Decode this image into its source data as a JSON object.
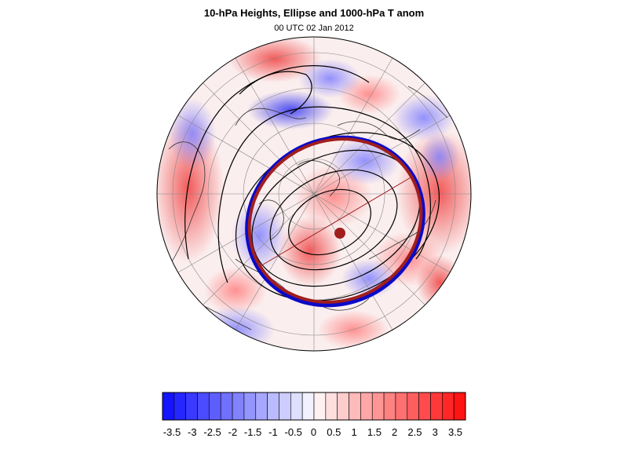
{
  "header": {
    "title": "10-hPa Heights, Ellipse and 1000-hPa T anom",
    "subtitle": "00 UTC 02 Jan 2012"
  },
  "colors": {
    "ellipse_observed": "#0a0ac8",
    "ellipse_fitted": "#a01e1e",
    "centroid": "#a01e1e",
    "contour": "#000000",
    "coastline": "#333333",
    "graticule": "#888888"
  },
  "legend": {
    "type": "colorbar",
    "labels": [
      "-3.5",
      "-3",
      "-2.5",
      "-2",
      "-1.5",
      "-1",
      "-0.5",
      "0",
      "0.5",
      "1",
      "1.5",
      "2",
      "2.5",
      "3",
      "3.5"
    ],
    "bins": 26,
    "min_color": "#1414ff",
    "max_color": "#ff1414"
  },
  "map": {
    "projection": "north polar stereographic",
    "fields": [
      "10-hPa geopotential height contours",
      "vortex ellipse",
      "1000-hPa temperature anomaly shading"
    ]
  }
}
